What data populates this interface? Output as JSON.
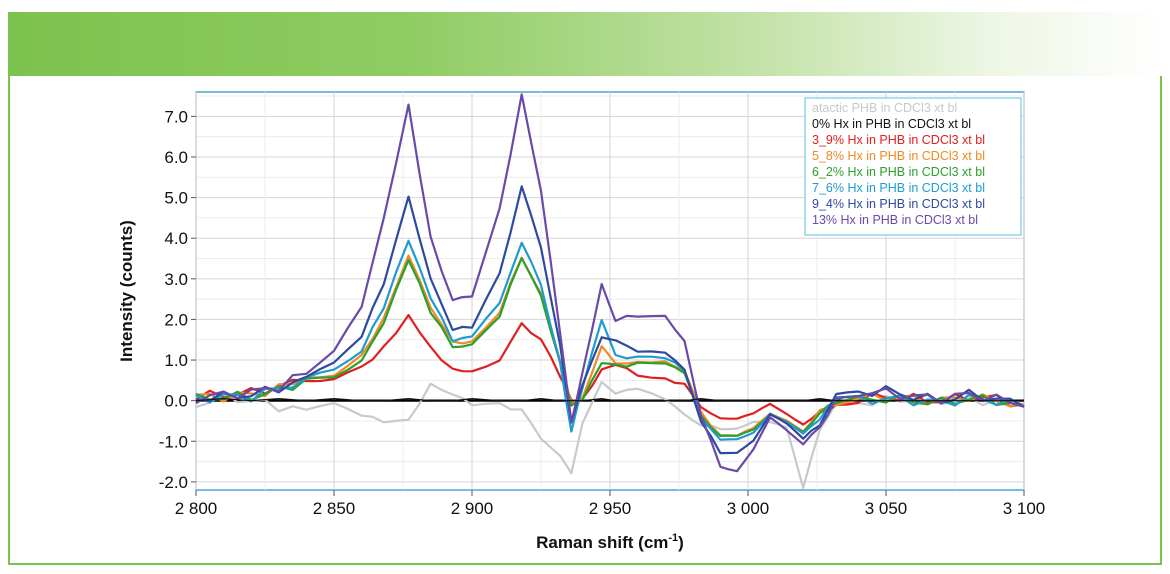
{
  "chart_data": {
    "type": "line",
    "title": "",
    "xlabel": "Raman shift (cm",
    "xlabel_sup": "-1",
    "xlabel_close": ")",
    "ylabel": "Intensity (counts)",
    "xlim": [
      2800,
      3100
    ],
    "ylim": [
      -2.2,
      7.6
    ],
    "xticks": [
      2800,
      2850,
      2900,
      2950,
      3000,
      3050,
      3100
    ],
    "xtick_labels": [
      "2 800",
      "2 850",
      "2 900",
      "2 950",
      "3 000",
      "3 050",
      "3 100"
    ],
    "yticks": [
      -2.0,
      -1.0,
      0.0,
      1.0,
      2.0,
      3.0,
      4.0,
      5.0,
      6.0,
      7.0
    ],
    "ytick_labels": [
      "-2.0",
      "-1.0",
      "0.0",
      "1.0",
      "2.0",
      "3.0",
      "4.0",
      "5.0",
      "6.0",
      "7.0"
    ],
    "grid": true,
    "legend_position": "top-right",
    "zero_line": true,
    "x": [
      2800,
      2810,
      2820,
      2830,
      2840,
      2850,
      2860,
      2868,
      2877,
      2885,
      2893,
      2900,
      2910,
      2918,
      2925,
      2932,
      2936,
      2940,
      2947,
      2952,
      2960,
      2970,
      2977,
      2983,
      2990,
      2996,
      3002,
      3008,
      3014,
      3020,
      3026,
      3032,
      3040,
      3050,
      3060,
      3070,
      3080,
      3090,
      3100
    ],
    "series": [
      {
        "name": "atactic PHB in CDCl3 xt bl",
        "color": "#c9c9c9",
        "values": [
          -0.1,
          0.1,
          0.0,
          -0.15,
          -0.2,
          -0.1,
          -0.35,
          -0.5,
          -0.5,
          0.4,
          0.15,
          -0.1,
          -0.1,
          -0.25,
          -0.9,
          -1.4,
          -1.75,
          -0.6,
          0.5,
          0.2,
          0.3,
          0.0,
          -0.3,
          -0.6,
          -0.7,
          -0.65,
          -0.5,
          -0.55,
          -0.7,
          -2.15,
          -0.6,
          -0.15,
          -0.05,
          0.0,
          0.05,
          0.0,
          0.0,
          0.0,
          -0.1
        ]
      },
      {
        "name": "0% Hx in PHB in CDCl3 xt bl",
        "color": "#111111",
        "values": [
          0.0,
          0.05,
          0.0,
          0.05,
          0.0,
          0.05,
          0.0,
          0.0,
          0.05,
          0.0,
          0.0,
          0.05,
          0.0,
          0.0,
          0.05,
          0.0,
          0.0,
          0.0,
          0.05,
          0.0,
          0.0,
          0.0,
          0.0,
          0.05,
          0.0,
          0.0,
          0.0,
          0.0,
          0.0,
          0.0,
          0.05,
          0.0,
          0.0,
          0.0,
          0.0,
          0.0,
          0.0,
          0.0,
          0.0
        ]
      },
      {
        "name": "3_9% Hx in PHB in CDCl3 xt bl",
        "color": "#e02020",
        "values": [
          0.1,
          0.15,
          0.2,
          0.35,
          0.5,
          0.55,
          0.8,
          1.3,
          2.1,
          1.3,
          0.75,
          0.75,
          1.0,
          1.9,
          1.5,
          0.6,
          0.0,
          0.05,
          0.75,
          0.9,
          0.65,
          0.55,
          0.4,
          -0.2,
          -0.4,
          -0.45,
          -0.35,
          -0.1,
          -0.3,
          -0.55,
          -0.3,
          0.0,
          0.05,
          0.1,
          0.05,
          0.0,
          0.1,
          0.05,
          -0.1
        ]
      },
      {
        "name": "5_8% Hx in PHB in CDCl3 xt bl",
        "color": "#f08a24",
        "values": [
          0.1,
          0.1,
          0.15,
          0.3,
          0.55,
          0.65,
          1.1,
          2.0,
          3.6,
          2.3,
          1.45,
          1.45,
          2.2,
          3.55,
          2.6,
          1.0,
          -0.1,
          0.1,
          1.3,
          0.9,
          0.95,
          1.0,
          0.7,
          -0.3,
          -0.85,
          -0.9,
          -0.7,
          -0.3,
          -0.45,
          -0.75,
          -0.35,
          0.0,
          0.05,
          0.1,
          0.05,
          0.0,
          0.1,
          0.0,
          -0.1
        ]
      },
      {
        "name": "6_2% Hx in PHB in CDCl3 xt bl",
        "color": "#2ca02c",
        "values": [
          0.05,
          0.1,
          0.1,
          0.25,
          0.5,
          0.6,
          1.0,
          1.9,
          3.5,
          2.2,
          1.35,
          1.35,
          2.1,
          3.55,
          2.55,
          0.95,
          -0.15,
          0.05,
          0.9,
          0.85,
          0.9,
          0.95,
          0.65,
          -0.35,
          -0.9,
          -0.9,
          -0.7,
          -0.3,
          -0.5,
          -0.8,
          -0.4,
          -0.05,
          0.0,
          0.05,
          0.0,
          -0.05,
          0.05,
          0.0,
          -0.15
        ]
      },
      {
        "name": "7_6% Hx in PHB in CDCl3 xt bl",
        "color": "#1f9bd1",
        "values": [
          0.05,
          0.1,
          0.1,
          0.3,
          0.55,
          0.75,
          1.25,
          2.3,
          3.95,
          2.55,
          1.5,
          1.55,
          2.4,
          3.9,
          2.85,
          0.9,
          -0.75,
          0.3,
          2.0,
          1.1,
          1.05,
          1.05,
          0.75,
          -0.4,
          -1.0,
          -0.95,
          -0.75,
          -0.3,
          -0.55,
          -0.85,
          -0.45,
          -0.05,
          0.0,
          0.05,
          0.0,
          -0.05,
          0.05,
          0.0,
          -0.15
        ]
      },
      {
        "name": "9_4% Hx in PHB in CDCl3 xt bl",
        "color": "#2e4a9e",
        "values": [
          0.05,
          0.1,
          0.15,
          0.3,
          0.6,
          0.9,
          1.6,
          2.9,
          5.0,
          3.0,
          1.75,
          1.8,
          3.1,
          5.25,
          3.8,
          1.3,
          -0.5,
          0.35,
          1.6,
          1.5,
          1.2,
          1.15,
          0.8,
          -0.5,
          -1.3,
          -1.25,
          -0.95,
          -0.35,
          -0.6,
          -0.95,
          -0.5,
          0.05,
          0.2,
          0.25,
          0.1,
          0.0,
          0.15,
          0.05,
          -0.15
        ]
      },
      {
        "name": "13% Hx in PHB in CDCl3 xt bl",
        "color": "#6a4aa8",
        "values": [
          0.05,
          0.15,
          0.2,
          0.35,
          0.7,
          1.2,
          2.3,
          4.5,
          7.25,
          4.0,
          2.45,
          2.6,
          4.7,
          7.5,
          5.2,
          1.6,
          -0.5,
          0.65,
          2.9,
          2.0,
          2.1,
          2.05,
          1.5,
          -0.4,
          -1.6,
          -1.7,
          -1.2,
          -0.45,
          -0.75,
          -1.05,
          -0.55,
          0.05,
          0.2,
          0.2,
          0.1,
          0.05,
          0.15,
          0.05,
          -0.15
        ]
      }
    ]
  }
}
